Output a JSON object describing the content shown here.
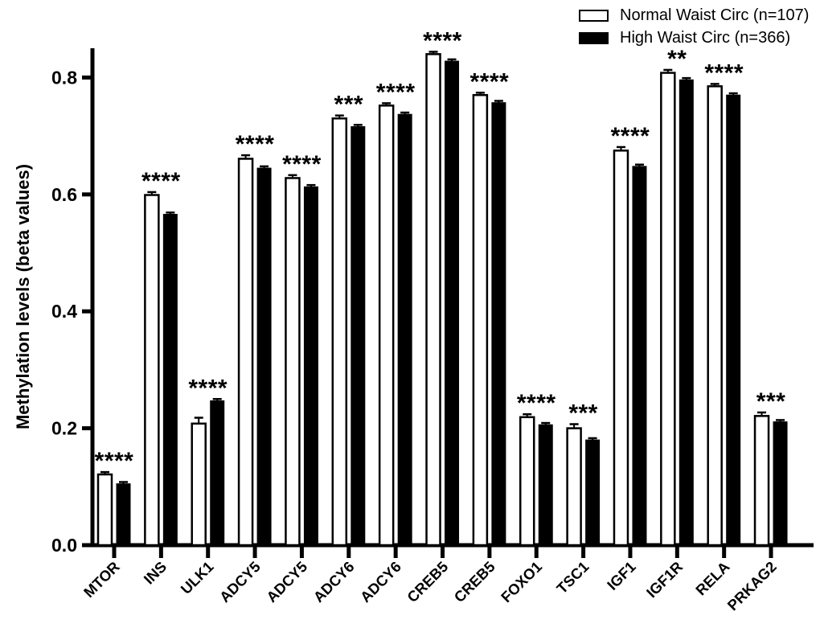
{
  "chart_data": {
    "type": "bar",
    "title": "",
    "xlabel": "",
    "ylabel": "Methylation levels (beta values)",
    "ylim": [
      0,
      0.85
    ],
    "yticks": [
      0.0,
      0.2,
      0.4,
      0.6,
      0.8
    ],
    "grid": false,
    "legend_position": "top-right",
    "categories": [
      "MTOR",
      "INS",
      "ULK1",
      "ADCY5",
      "ADCY5",
      "ADCY6",
      "ADCY6",
      "CREB5",
      "CREB5",
      "FOXO1",
      "TSC1",
      "IGF1",
      "IGF1R",
      "RELA",
      "PRKAG2"
    ],
    "significance": [
      "****",
      "****",
      "****",
      "****",
      "****",
      "***",
      "****",
      "****",
      "****",
      "****",
      "***",
      "****",
      "**",
      "****",
      "***"
    ],
    "series": [
      {
        "name": "Normal Waist Circ (n=107)",
        "fill": "#ffffff",
        "outline": "#000000",
        "values": [
          0.121,
          0.599,
          0.208,
          0.661,
          0.628,
          0.73,
          0.752,
          0.84,
          0.77,
          0.219,
          0.2,
          0.675,
          0.808,
          0.785,
          0.221
        ],
        "errors": [
          0.004,
          0.005,
          0.01,
          0.006,
          0.005,
          0.005,
          0.004,
          0.004,
          0.004,
          0.005,
          0.007,
          0.006,
          0.005,
          0.004,
          0.006
        ]
      },
      {
        "name": "High Waist Circ (n=366)",
        "fill": "#000000",
        "outline": "#000000",
        "values": [
          0.105,
          0.566,
          0.247,
          0.645,
          0.613,
          0.716,
          0.737,
          0.828,
          0.757,
          0.206,
          0.18,
          0.648,
          0.796,
          0.77,
          0.211
        ],
        "errors": [
          0.003,
          0.003,
          0.003,
          0.003,
          0.003,
          0.003,
          0.003,
          0.003,
          0.003,
          0.003,
          0.003,
          0.003,
          0.003,
          0.003,
          0.003
        ]
      }
    ],
    "colors": {
      "foreground": "#000000",
      "background": "#ffffff"
    }
  }
}
